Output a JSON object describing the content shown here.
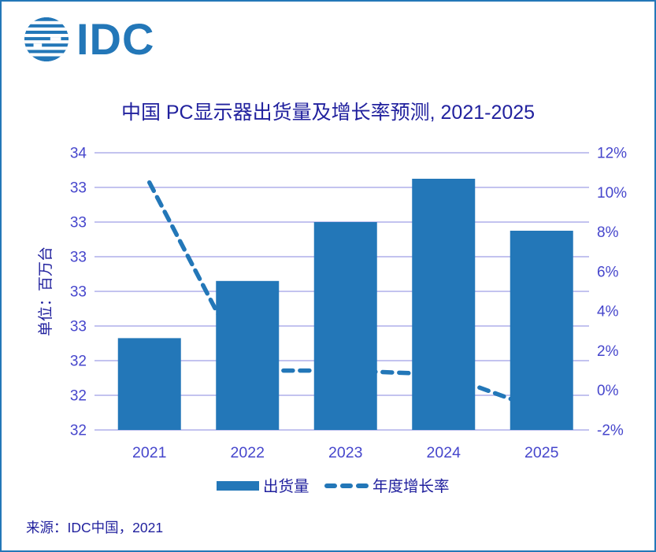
{
  "logo": {
    "brand": "IDC"
  },
  "title": "中国 PC显示器出货量及增长率预测, 2021-2025",
  "source": "来源：IDC中国，2021",
  "legend": {
    "bar_label": "出货量",
    "line_label": "年度增长率"
  },
  "colors": {
    "accent_blue": "#2377B8",
    "gridline": "#C3C3EF",
    "ink_dark": "#21219E",
    "ink_tick": "#4646CC",
    "border": "#2377B8"
  },
  "chart_data": {
    "type": "bar",
    "combo_line": true,
    "title": "中国 PC显示器出货量及增长率预测, 2021-2025",
    "categories": [
      "2021",
      "2022",
      "2023",
      "2024",
      "2025"
    ],
    "series": [
      {
        "name": "出货量",
        "type": "bar",
        "axis": "left",
        "unit": "百万台",
        "values": [
          32.53,
          32.86,
          33.2,
          33.45,
          33.15
        ]
      },
      {
        "name": "年度增长率",
        "type": "line",
        "line_style": "dashed",
        "axis": "right",
        "unit": "%",
        "values": [
          10.5,
          1.0,
          1.0,
          0.8,
          -1.0
        ]
      }
    ],
    "left_axis": {
      "title": "单位：百万台",
      "min": 32.0,
      "max": 33.6,
      "step": 0.2,
      "tick_labels_top_to_bottom": [
        "34",
        "33",
        "33",
        "33",
        "33",
        "33",
        "32",
        "32",
        "32"
      ]
    },
    "right_axis": {
      "min": -2,
      "max": 12,
      "step": 2,
      "tick_labels_top_to_bottom": [
        "12%",
        "10%",
        "8%",
        "6%",
        "4%",
        "2%",
        "0%",
        "-2%"
      ]
    },
    "grid": true,
    "legend_position": "bottom"
  }
}
